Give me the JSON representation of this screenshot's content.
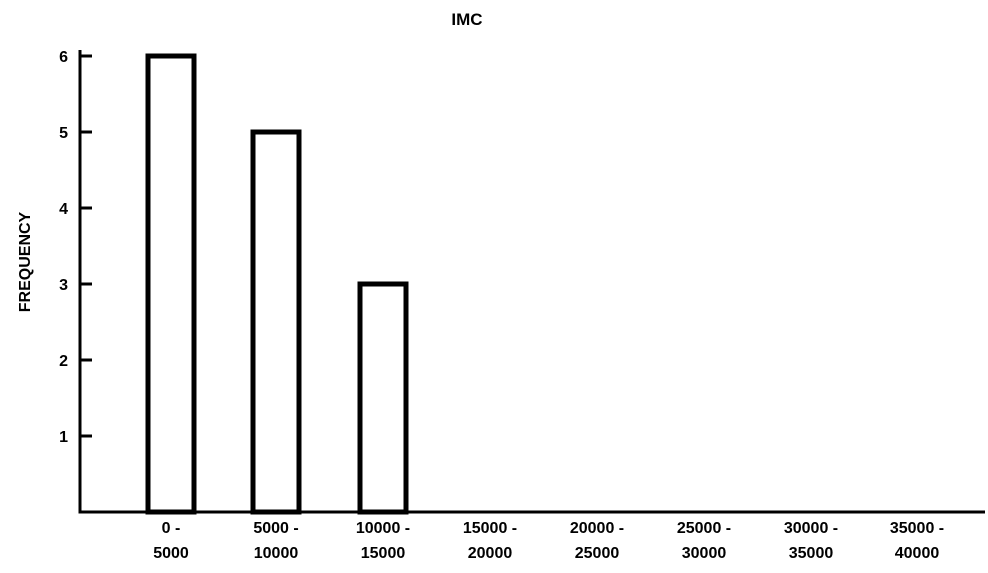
{
  "chart_data": {
    "type": "bar",
    "title": "IMC",
    "xlabel": "",
    "ylabel": "FREQUENCY",
    "categories": [
      [
        "0 -",
        "5000"
      ],
      [
        "5000 -",
        "10000"
      ],
      [
        "10000 -",
        "15000"
      ],
      [
        "15000 -",
        "20000"
      ],
      [
        "20000 -",
        "25000"
      ],
      [
        "25000 -",
        "30000"
      ],
      [
        "30000 -",
        "35000"
      ],
      [
        "35000 -",
        "40000"
      ]
    ],
    "values": [
      6,
      5,
      3,
      0,
      0,
      0,
      0,
      0
    ],
    "ylim": [
      0,
      6
    ],
    "yticks": [
      "1",
      "2",
      "3",
      "4",
      "5",
      "6"
    ],
    "grid": false,
    "colors": {
      "bar_fill": "#ffffff",
      "stroke": "#000000"
    }
  }
}
